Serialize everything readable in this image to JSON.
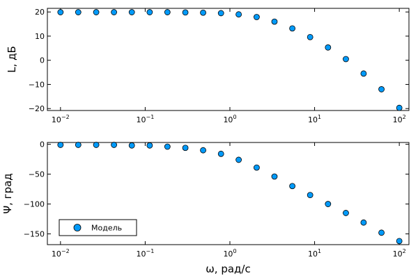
{
  "chart_data": [
    {
      "type": "scatter",
      "xscale": "log",
      "xlim": [
        0.007,
        130
      ],
      "ylim": [
        -20.8,
        21.5
      ],
      "ylabel": "L, дБ",
      "xlabel": "",
      "x_ticks": [
        0.01,
        0.1,
        1,
        10,
        100
      ],
      "x_tick_labels": [
        {
          "base": "10",
          "exp": "−2"
        },
        {
          "base": "10",
          "exp": "−1"
        },
        {
          "base": "10",
          "exp": "0"
        },
        {
          "base": "10",
          "exp": "1"
        },
        {
          "base": "10",
          "exp": "2"
        }
      ],
      "y_ticks": [
        -20,
        -10,
        0,
        10,
        20
      ],
      "y_tick_labels": [
        "−20",
        "−10",
        "0",
        "10",
        "20"
      ],
      "grid": false,
      "series": [
        {
          "color": "#009af9",
          "x": [
            0.01,
            0.0162,
            0.0264,
            0.0428,
            0.0695,
            0.113,
            0.183,
            0.298,
            0.483,
            0.785,
            1.27,
            2.07,
            3.36,
            5.46,
            8.86,
            14.4,
            23.4,
            37.9,
            61.6,
            100
          ],
          "y": [
            19.9,
            19.9,
            19.9,
            19.9,
            19.9,
            19.9,
            19.9,
            19.8,
            19.7,
            19.5,
            19.0,
            17.9,
            16.0,
            13.2,
            9.6,
            5.3,
            0.5,
            -5.5,
            -12.0,
            -19.7
          ]
        }
      ]
    },
    {
      "type": "scatter",
      "xscale": "log",
      "xlim": [
        0.007,
        130
      ],
      "ylim": [
        -168,
        3
      ],
      "ylabel": "Ψ, град",
      "xlabel": "ω, рад/с",
      "x_ticks": [
        0.01,
        0.1,
        1,
        10,
        100
      ],
      "x_tick_labels": [
        {
          "base": "10",
          "exp": "−2"
        },
        {
          "base": "10",
          "exp": "−1"
        },
        {
          "base": "10",
          "exp": "0"
        },
        {
          "base": "10",
          "exp": "1"
        },
        {
          "base": "10",
          "exp": "2"
        }
      ],
      "y_ticks": [
        -150,
        -100,
        -50,
        0
      ],
      "y_tick_labels": [
        "−150",
        "−100",
        "−50",
        "0"
      ],
      "grid": false,
      "legend": {
        "position": "bottom-left",
        "entries": [
          "Модель"
        ]
      },
      "series": [
        {
          "name": "Модель",
          "color": "#009af9",
          "x": [
            0.01,
            0.0162,
            0.0264,
            0.0428,
            0.0695,
            0.113,
            0.183,
            0.298,
            0.483,
            0.785,
            1.27,
            2.07,
            3.36,
            5.46,
            8.86,
            14.4,
            23.4,
            37.9,
            61.6,
            100
          ],
          "y": [
            -1,
            -1,
            -1,
            -1,
            -2,
            -2,
            -4,
            -6,
            -10,
            -16,
            -26,
            -39,
            -54,
            -70,
            -85,
            -100,
            -115,
            -131,
            -148,
            -162
          ]
        }
      ]
    }
  ]
}
